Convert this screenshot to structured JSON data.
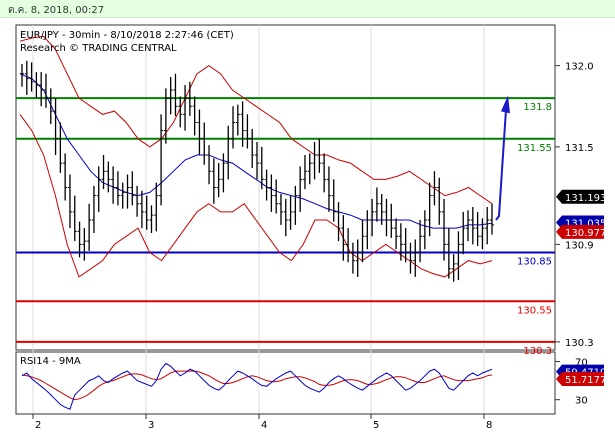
{
  "window": {
    "timestamp": "ต.ค. 8, 2018, 00:27"
  },
  "chart_data": {
    "type": "candlestick",
    "title": "EUR/JPY - 30min - 8/10/2018 2:27:46 (CET)",
    "subtitle": "Research © TRADING CENTRAL",
    "ylim": [
      130.25,
      132.25
    ],
    "y_ticks": [
      {
        "value": 132.0,
        "label": "132.0"
      },
      {
        "value": 131.5,
        "label": "131.5"
      },
      {
        "value": 130.9,
        "label": "130.9"
      },
      {
        "value": 130.3,
        "label": "130.3"
      }
    ],
    "x_ticks": [
      "2",
      "3",
      "4",
      "5",
      "8"
    ],
    "levels": [
      {
        "value": 131.8,
        "label": "131.8",
        "color": "#008000"
      },
      {
        "value": 131.55,
        "label": "131.55",
        "color": "#008000"
      },
      {
        "value": 130.85,
        "label": "130.85",
        "color": "#0000cc"
      },
      {
        "value": 130.55,
        "label": "130.55",
        "color": "#e00000"
      },
      {
        "value": 130.3,
        "label": "130.3",
        "color": "#e00000"
      }
    ],
    "price_tags": [
      {
        "value": 131.193,
        "label": "131.193",
        "bg": "#000000",
        "fg": "#ffffff"
      },
      {
        "value": 131.035,
        "label": "131.035",
        "bg": "#0000aa",
        "fg": "#ffffff"
      },
      {
        "value": 130.977,
        "label": "130.977",
        "bg": "#cc0000",
        "fg": "#ffffff"
      }
    ],
    "close_series": [
      131.95,
      131.92,
      131.9,
      131.88,
      131.85,
      131.8,
      131.72,
      131.55,
      131.4,
      131.25,
      131.1,
      130.98,
      130.9,
      130.92,
      131.05,
      131.2,
      131.3,
      131.35,
      131.3,
      131.25,
      131.2,
      131.22,
      131.25,
      131.2,
      131.15,
      131.1,
      131.05,
      131.08,
      131.2,
      131.6,
      131.8,
      131.85,
      131.75,
      131.7,
      131.8,
      131.75,
      131.65,
      131.55,
      131.45,
      131.35,
      131.25,
      131.3,
      131.4,
      131.55,
      131.65,
      131.7,
      131.6,
      131.55,
      131.45,
      131.4,
      131.3,
      131.25,
      131.2,
      131.15,
      131.1,
      131.05,
      131.1,
      131.2,
      131.3,
      131.35,
      131.4,
      131.45,
      131.4,
      131.3,
      131.2,
      131.1,
      131.0,
      130.9,
      130.85,
      130.8,
      130.85,
      130.95,
      131.05,
      131.1,
      131.15,
      131.1,
      131.05,
      131.0,
      130.95,
      130.9,
      130.85,
      130.8,
      130.85,
      130.95,
      131.05,
      131.2,
      131.25,
      131.1,
      130.9,
      130.75,
      130.78,
      130.9,
      131.0,
      131.05,
      131.0,
      130.95,
      131.0,
      131.05,
      131.02
    ],
    "projection": {
      "from": 131.05,
      "to": 131.78
    },
    "bollinger": {
      "upper": [
        132.15,
        132.17,
        132.18,
        132.1,
        131.95,
        131.8,
        131.75,
        131.7,
        131.72,
        131.65,
        131.55,
        131.5,
        131.55,
        131.65,
        131.8,
        131.95,
        132.0,
        131.95,
        131.85,
        131.8,
        131.75,
        131.7,
        131.65,
        131.55,
        131.5,
        131.45,
        131.45,
        131.42,
        131.4,
        131.35,
        131.3,
        131.3,
        131.32,
        131.35,
        131.3,
        131.25,
        131.2,
        131.22,
        131.25,
        131.2,
        131.15
      ],
      "lower": [
        131.7,
        131.6,
        131.45,
        131.2,
        130.9,
        130.7,
        130.75,
        130.8,
        130.9,
        130.95,
        131.0,
        130.85,
        130.8,
        130.9,
        131.0,
        131.1,
        131.15,
        131.1,
        131.1,
        131.15,
        131.05,
        130.95,
        130.85,
        130.8,
        130.9,
        131.05,
        131.05,
        131.0,
        130.85,
        130.8,
        130.85,
        130.9,
        130.85,
        130.8,
        130.75,
        130.72,
        130.7,
        130.75,
        130.8,
        130.78,
        130.8
      ],
      "middle": [
        131.95,
        131.92,
        131.85,
        131.7,
        131.55,
        131.45,
        131.35,
        131.28,
        131.25,
        131.22,
        131.2,
        131.22,
        131.28,
        131.35,
        131.42,
        131.45,
        131.45,
        131.42,
        131.4,
        131.35,
        131.3,
        131.25,
        131.22,
        131.2,
        131.18,
        131.15,
        131.12,
        131.1,
        131.08,
        131.05,
        131.05,
        131.05,
        131.05,
        131.05,
        131.02,
        131.0,
        131.0,
        131.0,
        131.02,
        131.02,
        131.03
      ]
    },
    "rsi": {
      "label": "RSI14 - 9MA",
      "ylim": [
        15,
        80
      ],
      "y_ticks": [
        {
          "value": 70,
          "label": "70"
        },
        {
          "value": 30,
          "label": "30"
        }
      ],
      "rsi_tag": {
        "value": 59.4719,
        "label": "59.4719"
      },
      "ma_tag": {
        "value": 51.7177,
        "label": "51.7177"
      },
      "rsi_values": [
        55,
        58,
        52,
        48,
        44,
        40,
        35,
        30,
        25,
        22,
        20,
        35,
        40,
        45,
        50,
        52,
        55,
        50,
        48,
        52,
        55,
        58,
        60,
        55,
        50,
        48,
        46,
        44,
        50,
        62,
        68,
        65,
        60,
        55,
        58,
        62,
        60,
        55,
        50,
        45,
        42,
        40,
        44,
        50,
        55,
        60,
        58,
        55,
        52,
        48,
        45,
        44,
        48,
        52,
        55,
        58,
        60,
        55,
        50,
        45,
        42,
        40,
        38,
        42,
        48,
        52,
        55,
        52,
        48,
        45,
        42,
        40,
        44,
        48,
        52,
        55,
        58,
        55,
        50,
        45,
        40,
        42,
        46,
        50,
        55,
        60,
        62,
        58,
        50,
        42,
        40,
        45,
        50,
        55,
        58,
        55,
        58,
        60,
        62
      ],
      "ma_values": [
        56,
        55,
        54,
        52,
        50,
        47,
        44,
        41,
        38,
        35,
        32,
        30,
        31,
        33,
        36,
        40,
        44,
        47,
        49,
        50,
        52,
        54,
        56,
        57,
        57,
        56,
        54,
        52,
        51,
        52,
        55,
        58,
        60,
        60,
        60,
        60,
        60,
        59,
        57,
        55,
        52,
        49,
        47,
        47,
        48,
        50,
        52,
        54,
        55,
        54,
        52,
        50,
        49,
        49,
        50,
        52,
        53,
        54,
        54,
        53,
        51,
        49,
        46,
        45,
        45,
        46,
        48,
        50,
        51,
        51,
        50,
        48,
        46,
        46,
        47,
        49,
        51,
        53,
        54,
        54,
        53,
        51,
        49,
        48,
        48,
        50,
        52,
        54,
        55,
        53,
        51,
        50,
        50,
        50,
        51,
        52,
        53,
        55,
        56
      ]
    }
  }
}
